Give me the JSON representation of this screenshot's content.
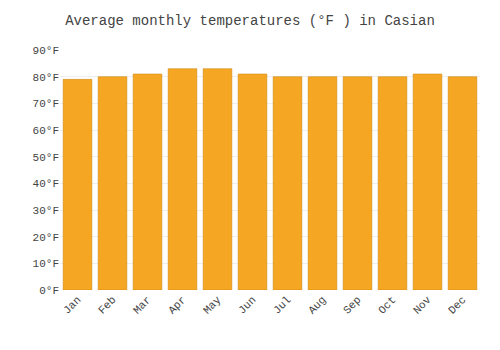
{
  "chart_data": {
    "type": "bar",
    "title": "Average monthly temperatures (°F ) in Casian",
    "categories": [
      "Jan",
      "Feb",
      "Mar",
      "Apr",
      "May",
      "Jun",
      "Jul",
      "Aug",
      "Sep",
      "Oct",
      "Nov",
      "Dec"
    ],
    "values": [
      79,
      80,
      81,
      83,
      83,
      81,
      80,
      80,
      80,
      80,
      81,
      80
    ],
    "color": "#F5A623",
    "ylim": [
      0,
      90
    ],
    "yticks": [
      {
        "value": 0,
        "label": "0°F"
      },
      {
        "value": 10,
        "label": "10°F"
      },
      {
        "value": 20,
        "label": "20°F"
      },
      {
        "value": 30,
        "label": "30°F"
      },
      {
        "value": 40,
        "label": "40°F"
      },
      {
        "value": 50,
        "label": "50°F"
      },
      {
        "value": 60,
        "label": "60°F"
      },
      {
        "value": 70,
        "label": "70°F"
      },
      {
        "value": 80,
        "label": "80°F"
      },
      {
        "value": 90,
        "label": "90°F"
      }
    ],
    "grid": true
  }
}
